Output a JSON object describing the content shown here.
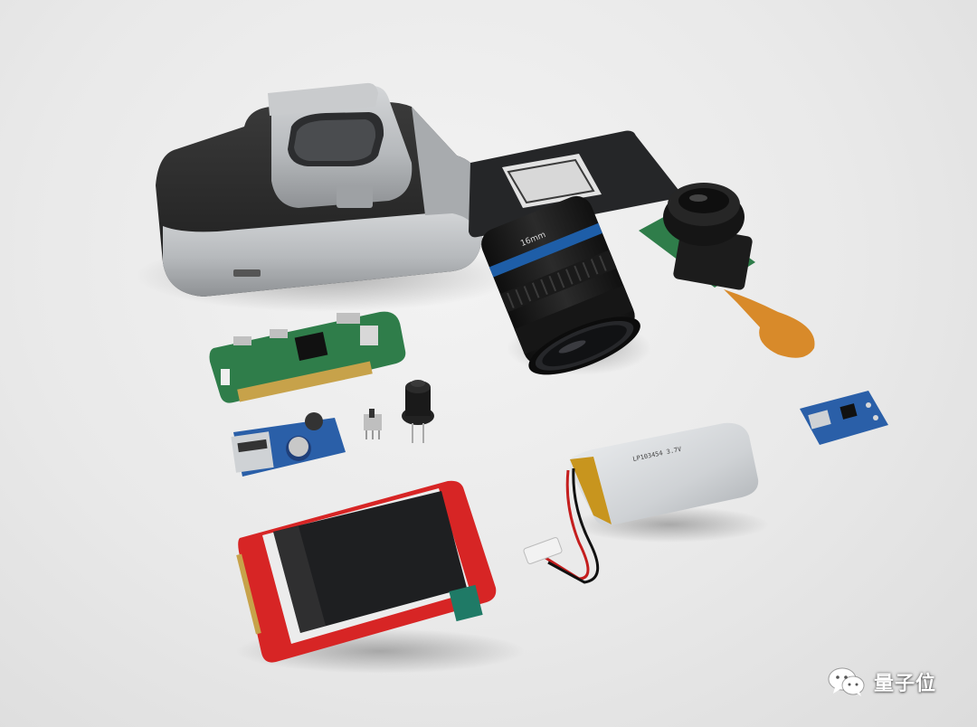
{
  "photo": {
    "subject": "DIY camera parts",
    "components": [
      {
        "name": "camera-body"
      },
      {
        "name": "film-strip-holder"
      },
      {
        "name": "c-mount-lens",
        "label": "16mm"
      },
      {
        "name": "camera-module"
      },
      {
        "name": "raspberry-pi-zero"
      },
      {
        "name": "boost-converter"
      },
      {
        "name": "slide-switch"
      },
      {
        "name": "push-button"
      },
      {
        "name": "lcd-display"
      },
      {
        "name": "lipo-battery"
      },
      {
        "name": "charger-board"
      }
    ]
  },
  "watermark": {
    "text": "量子位",
    "icon": "wechat-icon"
  },
  "colors": {
    "background": "#e9e9e9",
    "body_silver": "#b9bbbd",
    "leather": "#2a2a2a",
    "pcb_green": "#2f7d4a",
    "pcb_red": "#d62424",
    "pcb_blue": "#2a5fa8",
    "ribbon": "#d9892a",
    "battery": "#d2d4d6"
  }
}
